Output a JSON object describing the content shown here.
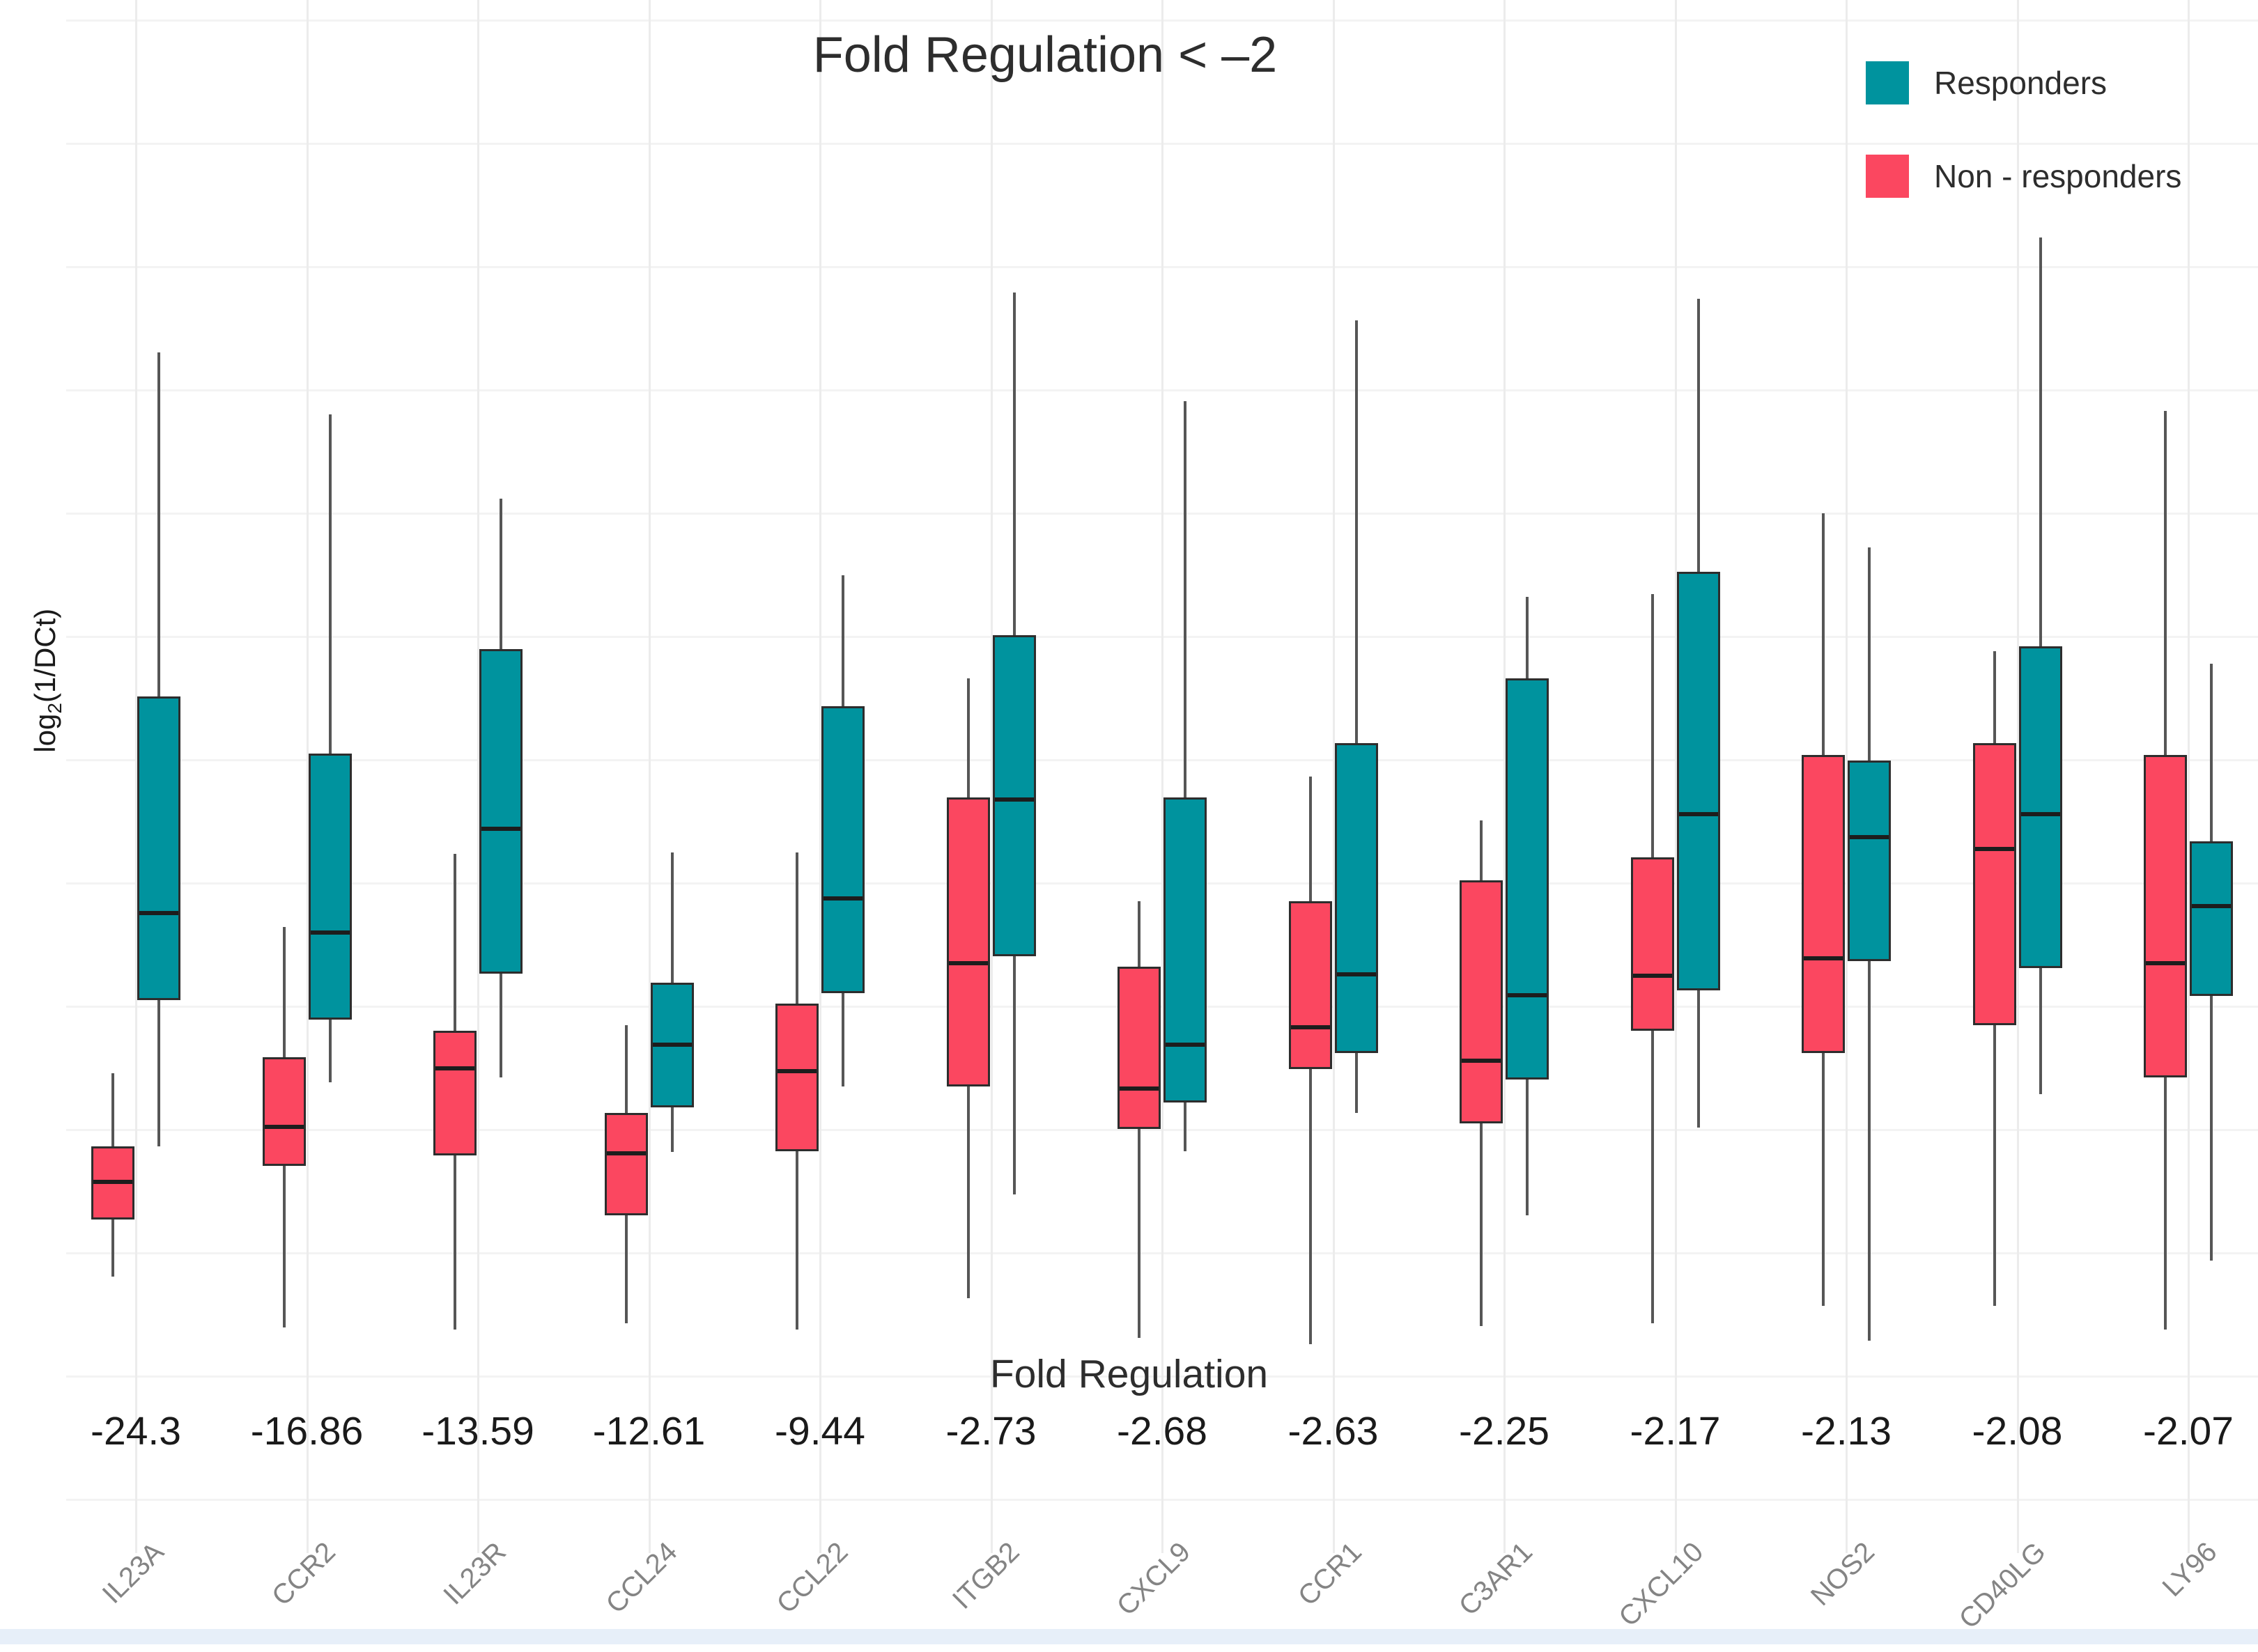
{
  "page": {
    "background": "#ffffff",
    "bottom_strip_color": "#e7eff9"
  },
  "chart_data": {
    "type": "box",
    "title": "Fold Regulation < –2",
    "xlabel": "Fold Regulation",
    "ylabel": {
      "prefix": "log",
      "sub": "2",
      "suffix": "(1/DCt)"
    },
    "y_axis": {
      "tick_labels_visible": false,
      "units": "normalized 0-100 percent of plot height (no numeric ticks shown in chart)"
    },
    "grid": "on",
    "legend": {
      "position": "top-right",
      "items": [
        {
          "label": "Responders",
          "color": "#00939e"
        },
        {
          "label": "Non - responders",
          "color": "#fb4760"
        }
      ]
    },
    "style_colors": {
      "box_stroke": "#2d2d2d",
      "median": "#1d1d1d",
      "whisker": "#565656",
      "gene_label": "#848484"
    },
    "groups": [
      {
        "gene": "IL23A",
        "fold_regulation": "-24.3",
        "non_responders": {
          "low": 5.6,
          "q1": 9.9,
          "median": 12.9,
          "q3": 15.4,
          "high": 20.9
        },
        "responders": {
          "low": 15.4,
          "q1": 26.4,
          "median": 33.1,
          "q3": 49.2,
          "high": 75.1
        }
      },
      {
        "gene": "CCR2",
        "fold_regulation": "-16.86",
        "non_responders": {
          "low": 1.8,
          "q1": 13.9,
          "median": 17.0,
          "q3": 22.1,
          "high": 31.9
        },
        "responders": {
          "low": 20.2,
          "q1": 24.9,
          "median": 31.6,
          "q3": 44.9,
          "high": 70.4
        }
      },
      {
        "gene": "IL23R",
        "fold_regulation": "-13.59",
        "non_responders": {
          "low": 1.6,
          "q1": 14.7,
          "median": 21.4,
          "q3": 24.1,
          "high": 37.4
        },
        "responders": {
          "low": 20.6,
          "q1": 28.4,
          "median": 39.4,
          "q3": 52.8,
          "high": 64.1
        }
      },
      {
        "gene": "CCL24",
        "fold_regulation": "-12.61",
        "non_responders": {
          "low": 2.1,
          "q1": 10.2,
          "median": 15.0,
          "q3": 17.9,
          "high": 24.5
        },
        "responders": {
          "low": 15.0,
          "q1": 18.3,
          "median": 23.2,
          "q3": 27.7,
          "high": 37.5
        }
      },
      {
        "gene": "CCL22",
        "fold_regulation": "-9.44",
        "non_responders": {
          "low": 1.6,
          "q1": 15.0,
          "median": 21.2,
          "q3": 26.1,
          "high": 37.5
        },
        "responders": {
          "low": 19.9,
          "q1": 26.9,
          "median": 34.2,
          "q3": 48.5,
          "high": 58.3
        }
      },
      {
        "gene": "ITGB2",
        "fold_regulation": "-2.73",
        "non_responders": {
          "low": 4.0,
          "q1": 19.9,
          "median": 29.3,
          "q3": 41.6,
          "high": 50.6
        },
        "responders": {
          "low": 11.8,
          "q1": 29.7,
          "median": 41.6,
          "q3": 53.8,
          "high": 79.6
        }
      },
      {
        "gene": "CXCL9",
        "fold_regulation": "-2.68",
        "non_responders": {
          "low": 1.0,
          "q1": 16.7,
          "median": 19.9,
          "q3": 28.9,
          "high": 33.8
        },
        "responders": {
          "low": 15.0,
          "q1": 18.7,
          "median": 23.2,
          "q3": 41.6,
          "high": 71.4
        }
      },
      {
        "gene": "CCR1",
        "fold_regulation": "-2.63",
        "non_responders": {
          "low": 0.5,
          "q1": 21.2,
          "median": 24.5,
          "q3": 33.8,
          "high": 43.2
        },
        "responders": {
          "low": 17.9,
          "q1": 22.4,
          "median": 28.5,
          "q3": 45.7,
          "high": 77.5
        }
      },
      {
        "gene": "C3AR1",
        "fold_regulation": "-2.25",
        "non_responders": {
          "low": 1.9,
          "q1": 17.1,
          "median": 22.0,
          "q3": 35.4,
          "high": 39.9
        },
        "responders": {
          "low": 10.2,
          "q1": 20.4,
          "median": 26.9,
          "q3": 50.6,
          "high": 56.7
        }
      },
      {
        "gene": "CXCL10",
        "fold_regulation": "-2.17",
        "non_responders": {
          "low": 2.1,
          "q1": 24.1,
          "median": 28.4,
          "q3": 37.1,
          "high": 56.9
        },
        "responders": {
          "low": 16.8,
          "q1": 27.1,
          "median": 40.5,
          "q3": 58.6,
          "high": 79.1
        }
      },
      {
        "gene": "NOS2",
        "fold_regulation": "-2.13",
        "non_responders": {
          "low": 3.4,
          "q1": 22.4,
          "median": 29.7,
          "q3": 44.8,
          "high": 63.0
        },
        "responders": {
          "low": 0.8,
          "q1": 29.3,
          "median": 38.8,
          "q3": 44.4,
          "high": 60.4
        }
      },
      {
        "gene": "CD40LG",
        "fold_regulation": "-2.08",
        "non_responders": {
          "low": 3.4,
          "q1": 24.5,
          "median": 37.9,
          "q3": 45.7,
          "high": 52.6
        },
        "responders": {
          "low": 19.3,
          "q1": 28.8,
          "median": 40.5,
          "q3": 53.0,
          "high": 83.7
        }
      },
      {
        "gene": "LY96",
        "fold_regulation": "-2.07",
        "non_responders": {
          "low": 1.6,
          "q1": 20.6,
          "median": 29.3,
          "q3": 44.8,
          "high": 70.7
        },
        "responders": {
          "low": 6.8,
          "q1": 26.7,
          "median": 33.6,
          "q3": 38.3,
          "high": 51.7
        }
      }
    ]
  }
}
